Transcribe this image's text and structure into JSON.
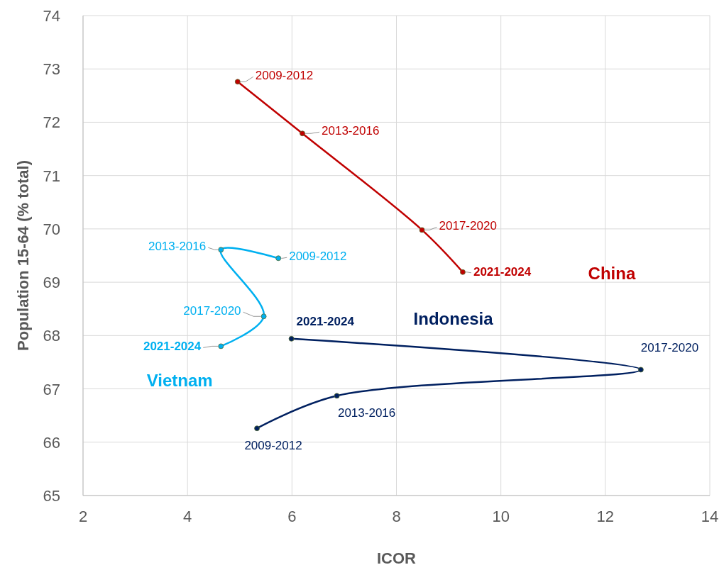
{
  "chart_data": {
    "type": "line",
    "xlabel": "ICOR",
    "ylabel": "Population 15-64 (% total)",
    "xlim": [
      2,
      14
    ],
    "xticks": [
      2,
      4,
      6,
      8,
      10,
      12,
      14
    ],
    "ylim": [
      65,
      74
    ],
    "yticks": [
      65,
      66,
      67,
      68,
      69,
      70,
      71,
      72,
      73,
      74
    ],
    "grid": true,
    "marker": "circle",
    "line_style": "solid",
    "series": [
      {
        "name": "China",
        "color": "#c00000",
        "x": [
          4.96,
          6.2,
          8.49,
          9.27
        ],
        "values": [
          72.76,
          71.79,
          69.98,
          69.19
        ],
        "value_labels": [
          "2009-2012",
          "2013-2016",
          "2017-2020",
          "2021-2024"
        ]
      },
      {
        "name": "Vietnam",
        "color": "#00b0f0",
        "x": [
          5.74,
          4.64,
          5.46,
          4.64
        ],
        "values": [
          69.45,
          69.61,
          68.36,
          67.8
        ],
        "value_labels": [
          "2009-2012",
          "2013-2016",
          "2017-2020",
          "2021-2024"
        ]
      },
      {
        "name": "Indonesia",
        "color": "#002060",
        "x": [
          5.33,
          6.86,
          12.68,
          5.99
        ],
        "values": [
          66.26,
          66.87,
          67.36,
          67.94
        ],
        "value_labels": [
          "2009-2012",
          "2013-2016",
          "2017-2020",
          "2021-2024"
        ]
      }
    ]
  }
}
